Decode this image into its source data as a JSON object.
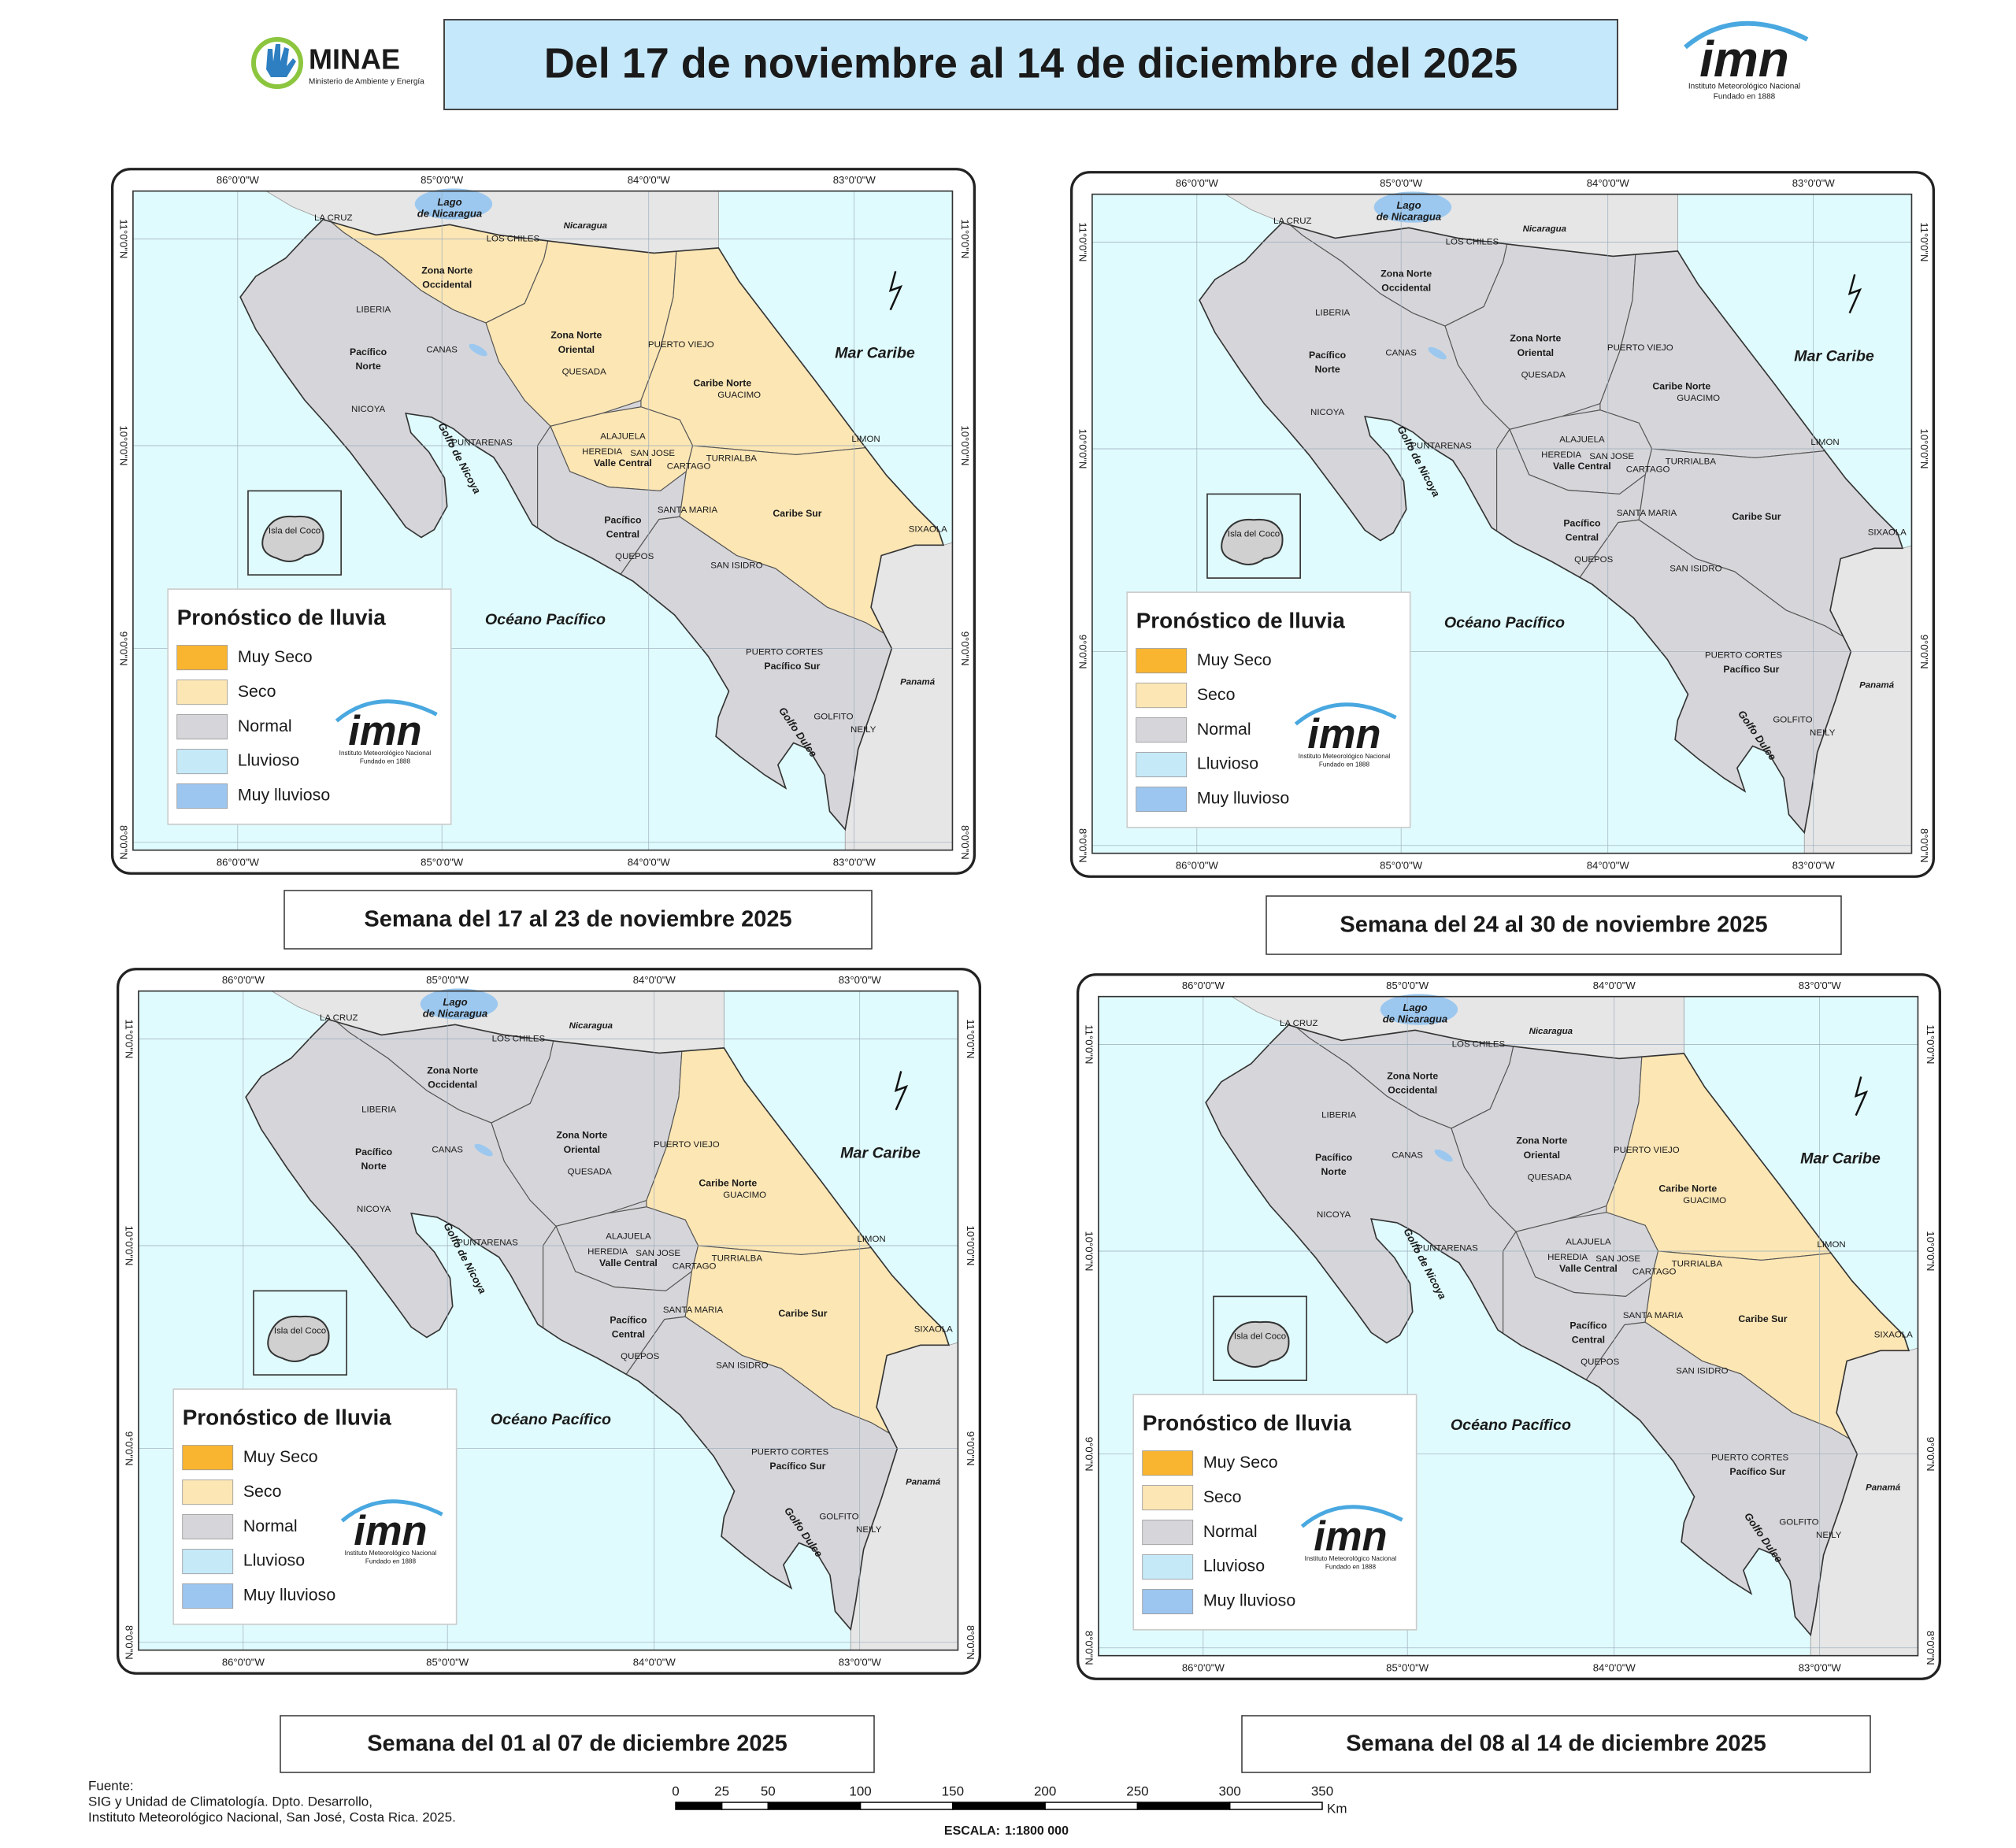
{
  "header": {
    "title": "Del 17 de noviembre al 14 de diciembre del 2025",
    "left_logo": {
      "name": "MINAE",
      "subtitle": "Ministerio de Ambiente y Energía"
    },
    "right_logo": {
      "name": "imn",
      "subtitle": "Instituto Meteorológico Nacional",
      "founded": "Fundado en 1888"
    }
  },
  "map_common": {
    "lon_labels": [
      "86°0'0\"W",
      "85°0'0\"W",
      "84°0'0\"W",
      "83°0'0\"W"
    ],
    "lat_labels": [
      "11°0'0\"N",
      "10°0'0\"N",
      "9°0'0\"N",
      "8°0'0\"N"
    ],
    "regions": [
      [
        "Zona Norte",
        "Occidental"
      ],
      [
        "Zona Norte",
        "Oriental"
      ],
      [
        "Pacífico",
        "Norte"
      ],
      [
        "Caribe Norte"
      ],
      [
        "Valle Central"
      ],
      [
        "Pacífico",
        "Central"
      ],
      [
        "Caribe Sur"
      ],
      [
        "Pacífico Sur"
      ]
    ],
    "places": [
      "LA CRUZ",
      "LOS CHILES",
      "Nicaragua",
      "LIBERIA",
      "CANAS",
      "NICOYA",
      "PUNTARENAS",
      "QUESADA",
      "PUERTO VIEJO",
      "GUACIMO",
      "LIMON",
      "ALAJUELA",
      "HEREDIA",
      "SAN JOSE",
      "CARTAGO",
      "TURRIALBA",
      "SANTA MARIA",
      "QUEPOS",
      "SAN ISIDRO",
      "PUERTO CORTES",
      "GOLFITO",
      "NEILY",
      "SIXAOLA",
      "Panamá",
      "Isla del Coco"
    ],
    "water": [
      [
        "Lago",
        "de Nicaragua"
      ],
      [
        "Mar Caribe"
      ],
      [
        "Océano Pacífico"
      ],
      [
        "Golfo de Nicoya"
      ],
      [
        "Golfo Dulce"
      ]
    ],
    "legend": {
      "title": "Pronóstico de lluvia",
      "items": [
        {
          "label": "Muy Seco",
          "color": "#f9b530"
        },
        {
          "label": "Seco",
          "color": "#fce6b4"
        },
        {
          "label": "Normal",
          "color": "#d6d6da"
        },
        {
          "label": "Lluvioso",
          "color": "#c6e9f8"
        },
        {
          "label": "Muy lluvioso",
          "color": "#9cc5ef"
        }
      ]
    }
  },
  "maps": [
    {
      "caption": "Semana del 17 al 23 de noviembre 2025",
      "forecast": [
        "Seco",
        "Seco",
        "Normal",
        "Seco",
        "Seco",
        "Normal",
        "Seco",
        "Normal"
      ]
    },
    {
      "caption": "Semana del 24 al 30 de noviembre 2025",
      "forecast": [
        "Normal",
        "Normal",
        "Normal",
        "Normal",
        "Normal",
        "Normal",
        "Normal",
        "Normal"
      ]
    },
    {
      "caption": "Semana del 01 al 07 de diciembre 2025",
      "forecast": [
        "Normal",
        "Normal",
        "Normal",
        "Seco",
        "Normal",
        "Normal",
        "Seco",
        "Normal"
      ]
    },
    {
      "caption": "Semana del 08 al 14 de diciembre 2025",
      "forecast": [
        "Normal",
        "Normal",
        "Normal",
        "Seco",
        "Normal",
        "Normal",
        "Seco",
        "Normal"
      ]
    }
  ],
  "footer": {
    "source": [
      "Fuente:",
      "SIG y Unidad de Climatología. Dpto. Desarrollo,",
      "Instituto Meteorológico Nacional, San José, Costa Rica. 2025."
    ],
    "scale_bar": {
      "ticks": [
        0,
        25,
        50,
        100,
        150,
        200,
        250,
        300,
        350
      ],
      "unit": "Km",
      "label": "ESCALA:",
      "ratio": "1:1800 000"
    }
  }
}
